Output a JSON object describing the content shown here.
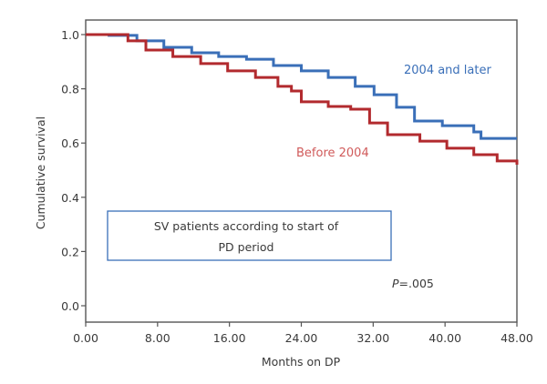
{
  "chart_data": {
    "type": "line",
    "step": true,
    "title": "",
    "xlabel": "Months on DP",
    "ylabel": "Cumulative survival",
    "xlim": [
      0,
      48
    ],
    "ylim": [
      -0.05,
      1.05
    ],
    "xticks": [
      0,
      8,
      16,
      24,
      32,
      40,
      48
    ],
    "xtick_labels": [
      "0.00",
      "8.00",
      "16.00",
      "24.00",
      "32.00",
      "40.00",
      "48.00"
    ],
    "yticks": [
      0,
      0.2,
      0.4,
      0.6,
      0.8,
      1.0
    ],
    "ytick_labels": [
      "0.0",
      "0.2",
      "0.4",
      "0.6",
      "0.8",
      "1.0"
    ],
    "grid": false,
    "series": [
      {
        "name": "2004 and later",
        "color": "#3a6fb8",
        "label_color": "#3a6fb8",
        "x": [
          0,
          2.6,
          5.7,
          8.7,
          11.8,
          14.8,
          17.9,
          20.9,
          24.0,
          27.0,
          30.0,
          32.1,
          34.6,
          36.6,
          39.7,
          43.2,
          44.0,
          48.0
        ],
        "y": [
          1.0,
          0.997,
          0.977,
          0.953,
          0.933,
          0.919,
          0.909,
          0.886,
          0.866,
          0.842,
          0.809,
          0.778,
          0.732,
          0.681,
          0.664,
          0.641,
          0.617,
          0.617
        ]
      },
      {
        "name": "Before 2004",
        "color": "#b22a2e",
        "label_color": "#d05a5a",
        "x": [
          0,
          2.1,
          4.7,
          6.7,
          9.7,
          12.8,
          15.8,
          18.9,
          21.4,
          22.9,
          24.0,
          27.0,
          29.5,
          31.6,
          33.6,
          37.2,
          40.2,
          43.2,
          45.8,
          48.0
        ],
        "y": [
          1.0,
          1.0,
          0.977,
          0.943,
          0.919,
          0.893,
          0.866,
          0.842,
          0.809,
          0.792,
          0.752,
          0.735,
          0.725,
          0.674,
          0.631,
          0.607,
          0.581,
          0.557,
          0.534,
          0.52
        ]
      }
    ],
    "annotations": [
      {
        "text": "SV patients according to start of PD period",
        "boxed": true
      },
      {
        "text_italic": "P",
        "text": "=.005"
      }
    ]
  },
  "labels": {
    "series_blue": "2004 and later",
    "series_red": "Before 2004",
    "box_line1": "SV patients according to start of",
    "box_line2": "PD period",
    "p_italic": "P",
    "p_value": "=.005"
  }
}
